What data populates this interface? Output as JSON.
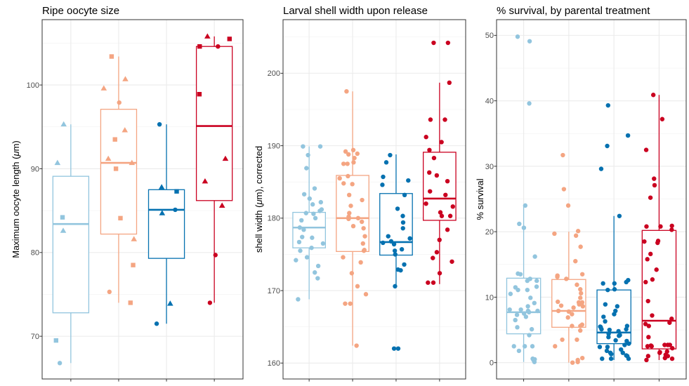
{
  "chart_data": [
    {
      "type": "box",
      "title": "Ripe oocyte size",
      "xlabel": "",
      "ylabel": "Maximum oocyte length (μm)",
      "ylim": [
        64.9,
        107.8
      ],
      "yticks": [
        70,
        80,
        90,
        100
      ],
      "grid": true,
      "legend": "none",
      "groups": [
        {
          "color": "#92c5de",
          "box": {
            "whisker_low": 66.8,
            "q1": 72.8,
            "median": 83.4,
            "q3": 89.1,
            "whisker_high": 95.3
          },
          "points": [
            {
              "y": 95.3,
              "shape": "triangle"
            },
            {
              "y": 90.7,
              "shape": "triangle"
            },
            {
              "y": 84.2,
              "shape": "square"
            },
            {
              "y": 82.6,
              "shape": "triangle"
            },
            {
              "y": 69.5,
              "shape": "square"
            },
            {
              "y": 66.8,
              "shape": "circle"
            }
          ]
        },
        {
          "color": "#f4a582",
          "box": {
            "whisker_low": 74.0,
            "q1": 82.2,
            "median": 90.7,
            "q3": 97.1,
            "whisker_high": 103.4
          },
          "points": [
            {
              "y": 103.4,
              "shape": "square"
            },
            {
              "y": 100.7,
              "shape": "triangle"
            },
            {
              "y": 99.6,
              "shape": "triangle"
            },
            {
              "y": 97.9,
              "shape": "circle"
            },
            {
              "y": 94.6,
              "shape": "triangle"
            },
            {
              "y": 93.5,
              "shape": "square"
            },
            {
              "y": 91.2,
              "shape": "triangle"
            },
            {
              "y": 90.7,
              "shape": "triangle"
            },
            {
              "y": 90.0,
              "shape": "square"
            },
            {
              "y": 84.1,
              "shape": "square"
            },
            {
              "y": 81.6,
              "shape": "triangle"
            },
            {
              "y": 78.5,
              "shape": "square"
            },
            {
              "y": 75.3,
              "shape": "circle"
            },
            {
              "y": 74.0,
              "shape": "square"
            }
          ]
        },
        {
          "color": "#0571b0",
          "box": {
            "whisker_low": 71.5,
            "q1": 79.3,
            "median": 85.1,
            "q3": 87.5,
            "whisker_high": 95.3
          },
          "points": [
            {
              "y": 95.3,
              "shape": "circle"
            },
            {
              "y": 87.8,
              "shape": "triangle"
            },
            {
              "y": 87.3,
              "shape": "square"
            },
            {
              "y": 85.1,
              "shape": "circle"
            },
            {
              "y": 84.7,
              "shape": "triangle"
            },
            {
              "y": 73.9,
              "shape": "triangle"
            },
            {
              "y": 71.5,
              "shape": "circle"
            }
          ]
        },
        {
          "color": "#ca0020",
          "box": {
            "whisker_low": 74.0,
            "q1": 86.2,
            "median": 95.1,
            "q3": 104.6,
            "whisker_high": 105.8
          },
          "points": [
            {
              "y": 105.8,
              "shape": "triangle"
            },
            {
              "y": 105.5,
              "shape": "square"
            },
            {
              "y": 104.6,
              "shape": "circle"
            },
            {
              "y": 104.6,
              "shape": "square"
            },
            {
              "y": 98.9,
              "shape": "square"
            },
            {
              "y": 91.2,
              "shape": "triangle"
            },
            {
              "y": 88.5,
              "shape": "triangle"
            },
            {
              "y": 85.6,
              "shape": "triangle"
            },
            {
              "y": 79.7,
              "shape": "circle"
            },
            {
              "y": 74.0,
              "shape": "circle"
            }
          ]
        }
      ]
    },
    {
      "type": "box",
      "title": "Larval shell width upon release",
      "xlabel": "",
      "ylabel": "shell width (μm), corrected",
      "ylim": [
        157.8,
        207.4
      ],
      "yticks": [
        160,
        170,
        180,
        190,
        200
      ],
      "grid": true,
      "legend": "none",
      "groups": [
        {
          "color": "#92c5de",
          "box": {
            "whisker_low": 168.8,
            "q1": 175.9,
            "median": 178.7,
            "q3": 180.8,
            "whisker_high": 189.9
          },
          "points": [
            189.9,
            189.9,
            188.7,
            186.9,
            184.1,
            183.3,
            182.7,
            182.2,
            181.9,
            181.2,
            181.0,
            180.7,
            180.6,
            180.0,
            179.7,
            178.7,
            178.4,
            177.4,
            177.3,
            176.7,
            176.5,
            175.9,
            175.5,
            174.6,
            174.2,
            173.4,
            172.5,
            171.7,
            168.8
          ]
        },
        {
          "color": "#f4a582",
          "box": {
            "whisker_low": 162.4,
            "q1": 175.4,
            "median": 180.0,
            "q3": 185.9,
            "whisker_high": 197.5
          },
          "points": [
            197.5,
            189.4,
            189.2,
            188.9,
            188.8,
            188.3,
            187.7,
            187.5,
            187.5,
            185.8,
            185.5,
            184.8,
            184.7,
            183.2,
            182.5,
            181.7,
            180.7,
            180.2,
            180.0,
            179.9,
            179.5,
            178.9,
            178.6,
            177.5,
            176.5,
            175.6,
            175.5,
            174.6,
            173.9,
            172.4,
            170.6,
            169.5,
            168.2,
            168.2,
            162.4
          ]
        },
        {
          "color": "#0571b0",
          "box": {
            "whisker_low": 170.5,
            "q1": 174.9,
            "median": 176.7,
            "q3": 183.4,
            "whisker_high": 188.8
          },
          "points": [
            188.7,
            187.7,
            185.7,
            185.2,
            184.6,
            183.2,
            181.3,
            180.3,
            179.4,
            178.6,
            177.5,
            177.2,
            176.8,
            176.6,
            176.4,
            175.7,
            175.5,
            175.0,
            173.6,
            172.9,
            172.8,
            170.6,
            162.0,
            162.0
          ]
        },
        {
          "color": "#ca0020",
          "box": {
            "whisker_low": 170.9,
            "q1": 179.7,
            "median": 182.7,
            "q3": 189.1,
            "whisker_high": 198.7
          },
          "points": [
            204.2,
            204.2,
            198.7,
            193.6,
            193.6,
            191.2,
            190.5,
            189.4,
            188.3,
            186.3,
            185.9,
            185.1,
            183.7,
            183.2,
            182.0,
            181.6,
            180.8,
            180.3,
            180.3,
            178.4,
            177.0,
            175.3,
            174.5,
            174.0,
            172.4,
            171.1,
            171.1
          ]
        }
      ]
    },
    {
      "type": "box",
      "title": "% survival, by parental treatment",
      "xlabel": "",
      "ylabel": "% survival",
      "ylim": [
        -2.5,
        52.4
      ],
      "yticks": [
        0,
        10,
        20,
        30,
        40,
        50
      ],
      "grid": true,
      "legend": "none",
      "groups": [
        {
          "color": "#92c5de",
          "box": {
            "whisker_low": 0.1,
            "q1": 4.4,
            "median": 7.7,
            "q3": 12.9,
            "whisker_high": 24.0
          },
          "points": [
            49.8,
            49.1,
            39.6,
            24.0,
            21.2,
            20.6,
            16.2,
            13.6,
            13.5,
            12.8,
            12.5,
            12.5,
            11.6,
            11.5,
            11.1,
            11.1,
            10.5,
            9.9,
            9.1,
            8.6,
            8.1,
            8.1,
            7.9,
            7.9,
            7.7,
            7.5,
            7.3,
            7.0,
            6.5,
            5.4,
            5.1,
            4.2,
            2.5,
            2.5,
            2.5,
            1.8,
            0.6,
            0.5,
            0.4,
            0.1
          ]
        },
        {
          "color": "#f4a582",
          "box": {
            "whisker_low": 0.0,
            "q1": 5.4,
            "median": 7.9,
            "q3": 12.7,
            "whisker_high": 20.0
          },
          "points": [
            31.7,
            26.5,
            24.0,
            20.1,
            19.7,
            19.4,
            17.7,
            15.5,
            13.5,
            13.3,
            13.1,
            12.8,
            11.9,
            11.2,
            10.6,
            9.9,
            9.3,
            9.2,
            9.2,
            8.9,
            8.7,
            8.6,
            8.4,
            7.9,
            7.8,
            7.4,
            6.9,
            5.8,
            5.6,
            5.6,
            4.9,
            3.5,
            3.5,
            2.5,
            0.7,
            0.4,
            0.1,
            0.0
          ]
        },
        {
          "color": "#0571b0",
          "box": {
            "whisker_low": 0.4,
            "q1": 2.9,
            "median": 4.6,
            "q3": 11.1,
            "whisker_high": 22.4
          },
          "points": [
            39.3,
            34.7,
            33.1,
            29.6,
            22.4,
            12.6,
            12.3,
            12.1,
            12.1,
            11.2,
            11.1,
            8.9,
            8.6,
            7.9,
            7.4,
            7.0,
            6.3,
            5.6,
            5.5,
            5.4,
            5.1,
            5.1,
            5.0,
            4.8,
            4.4,
            4.2,
            4.1,
            3.9,
            3.4,
            3.3,
            2.9,
            2.7,
            2.4,
            2.4,
            2.0,
            1.8,
            1.5,
            1.5,
            1.3,
            1.1,
            1.0,
            0.6,
            0.6,
            0.6
          ]
        },
        {
          "color": "#ca0020",
          "box": {
            "whisker_low": 0.4,
            "q1": 2.1,
            "median": 6.4,
            "q3": 20.2,
            "whisker_high": 40.9
          },
          "points": [
            40.9,
            37.2,
            32.5,
            28.1,
            27.1,
            25.2,
            20.9,
            20.8,
            20.8,
            20.3,
            18.6,
            18.5,
            18.3,
            16.6,
            15.8,
            14.2,
            12.7,
            12.3,
            9.4,
            7.2,
            6.7,
            6.1,
            5.9,
            5.6,
            3.9,
            2.7,
            2.7,
            2.7,
            2.6,
            2.5,
            2.5,
            2.2,
            1.7,
            1.6,
            1.5,
            1.2,
            1.0,
            1.0,
            0.7,
            0.6,
            0.4
          ]
        }
      ]
    }
  ]
}
